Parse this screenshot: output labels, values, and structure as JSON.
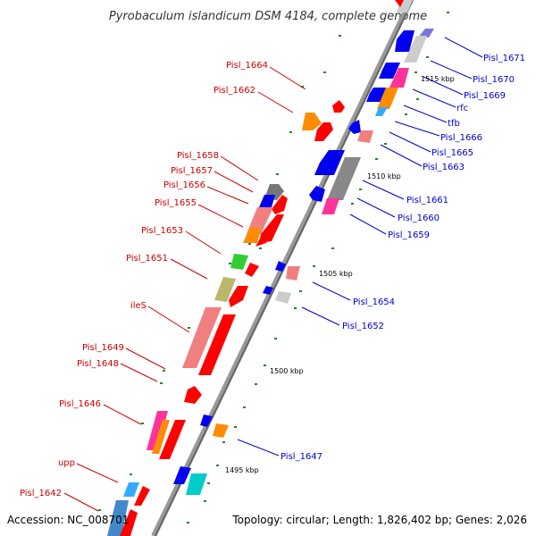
{
  "title": "Pyrobaculum islandicum DSM 4184, complete genome",
  "accession": "Accession: NC_008701",
  "topology": "Topology: circular; Length: 1,826,402 bp; Genes: 2,026",
  "colors": {
    "backbone": "#999999",
    "red": "#ff0000",
    "salmon": "#f08080",
    "blue": "#0000ee",
    "orange": "#ff8c00",
    "grey": "#888888",
    "lightgrey": "#cccccc",
    "pink": "#ff3399",
    "green": "#33cc33",
    "olive": "#bdb76b",
    "cyan": "#00cccc",
    "skyblue": "#33aaff",
    "lavender": "#7777dd",
    "tick": "#228822",
    "label_red": "#cc0000",
    "label_blue": "#0000cc"
  },
  "scale_labels": [
    "1495 kbp",
    "1500 kbp",
    "1505 kbp",
    "1510 kbp",
    "1515 kbp"
  ],
  "left_labels": [
    "Pisl_1664",
    "Pisl_1662",
    "Pisl_1658",
    "Pisl_1657",
    "Pisl_1656",
    "Pisl_1655",
    "Pisl_1653",
    "Pisl_1651",
    "ileS",
    "Pisl_1649",
    "Pisl_1648",
    "Pisl_1646",
    "upp",
    "Pisl_1642"
  ],
  "right_labels": [
    "Pisl_1671",
    "Pisl_1670",
    "Pisl_1669",
    "rfc",
    "tfb",
    "Pisl_1666",
    "Pisl_1665",
    "Pisl_1663",
    "Pisl_1661",
    "Pisl_1660",
    "Pisl_1659",
    "Pisl_1654",
    "Pisl_1652",
    "Pisl_1647"
  ]
}
